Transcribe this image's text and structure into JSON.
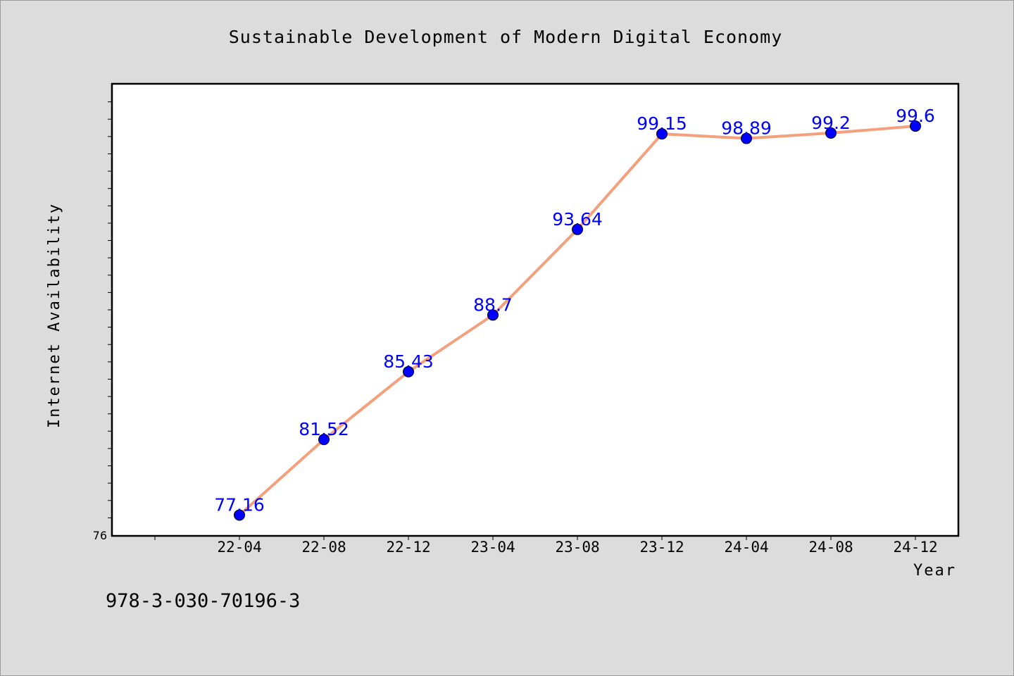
{
  "chart_data": {
    "type": "line",
    "title": "Sustainable Development of Modern Digital Economy",
    "xlabel": "Year",
    "ylabel": "Internet Availability",
    "categories": [
      "22-04",
      "22-08",
      "22-12",
      "23-04",
      "23-08",
      "23-12",
      "24-04",
      "24-08",
      "24-12"
    ],
    "series": [
      {
        "values": [
          77.16,
          81.52,
          85.43,
          88.7,
          93.64,
          99.15,
          98.89,
          99.2,
          99.6
        ]
      }
    ],
    "labels": [
      "77.16",
      "81.52",
      "85.43",
      "88.7",
      "93.64",
      "99.15",
      "98.89",
      "99.2",
      "99.6"
    ],
    "ylim": [
      76,
      102
    ],
    "yticks_labeled": [
      "76"
    ],
    "grid": false,
    "legend": "none",
    "colors": {
      "line": "#f4a07c",
      "marker": "#0000ff",
      "data_label": "#0000ff",
      "plot_background": "#ffffff",
      "page_background": "#dcdcdc"
    }
  },
  "footer": {
    "isbn": "978-3-030-70196-3"
  }
}
